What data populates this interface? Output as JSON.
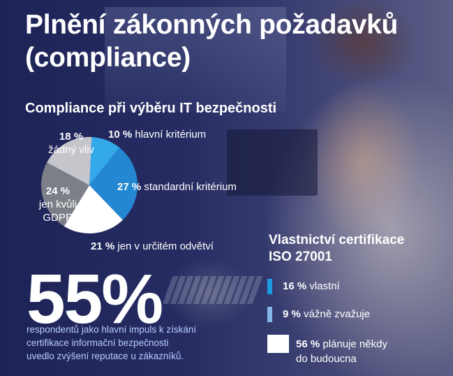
{
  "title_line1": "Plnění zákonných požadavků",
  "title_line2": "(compliance)",
  "colors": {
    "background_dark": "#1e2356",
    "light_blue": "#33a9ea",
    "mid_blue": "#2487d2",
    "white": "#ffffff",
    "dark_gray": "#7c7f87",
    "light_gray": "#c4c6cb",
    "note_text": "#b8ccff",
    "swatch_blue": "#1e9be3",
    "swatch_lightblue": "#86b6e8"
  },
  "chart_data": [
    {
      "type": "pie",
      "title": "Compliance při výběru IT bezpečnosti",
      "slices": [
        {
          "value": 10,
          "label_pct": "10 %",
          "label": "hlavní kritérium",
          "color": "#33a9ea"
        },
        {
          "value": 27,
          "label_pct": "27 %",
          "label": "standardní kritérium",
          "color": "#2487d2"
        },
        {
          "value": 21,
          "label_pct": "21 %",
          "label": "jen v určitém odvětví",
          "color": "#ffffff"
        },
        {
          "value": 24,
          "label_pct": "24 %",
          "label": "jen kvůli GDPR",
          "label_line1": "jen kvůli",
          "label_line2": "GDPR",
          "color": "#7c7f87"
        },
        {
          "value": 18,
          "label_pct": "18 %",
          "label": "žádný vliv",
          "color": "#c4c6cb"
        }
      ]
    },
    {
      "type": "table",
      "title_line1": "Vlastnictví certifikace",
      "title_line2": "ISO 27001",
      "items": [
        {
          "value": 16,
          "pct": "16 %",
          "label": "vlastní",
          "color": "#1e9be3"
        },
        {
          "value": 9,
          "pct": "9 %",
          "label": "vážně zvažuje",
          "color": "#86b6e8"
        },
        {
          "value": 56,
          "pct": "56 %",
          "label": "plánuje někdy do budoucna",
          "label_line1": "plánuje někdy",
          "label_line2": "do budoucna",
          "color": "#ffffff"
        }
      ]
    }
  ],
  "highlight": {
    "number": "55%",
    "note_line1": "respondentů jako hlavní impuls k získání",
    "note_line2": "certifikace informační bezpečnosti",
    "note_line3": "uvedlo zvýšení reputace u zákazníků."
  }
}
